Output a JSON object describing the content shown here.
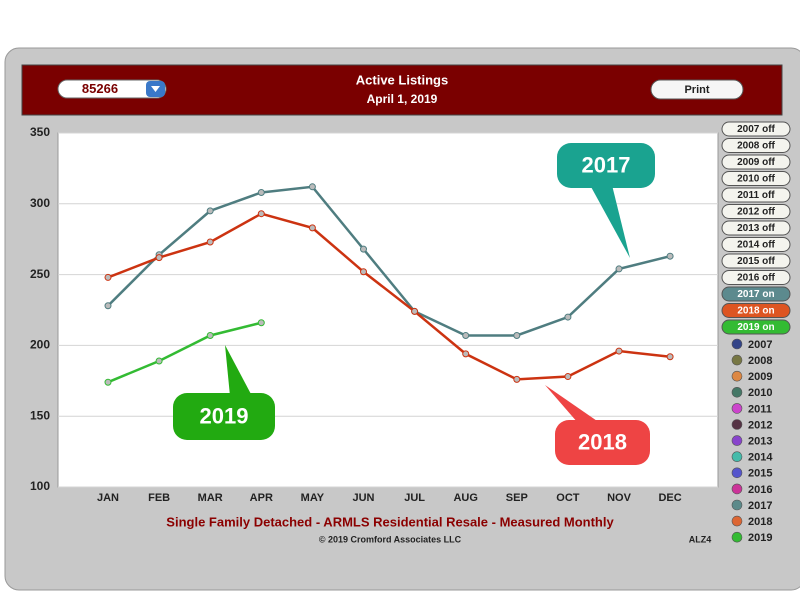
{
  "chart_data": {
    "type": "line",
    "title": "Active Listings",
    "subtitle": "April 1, 2019",
    "zip_select": "85266",
    "print_button": "Print",
    "footer": "Single Family Detached - ARMLS Residential Resale - Measured Monthly",
    "copyright": "© 2019 Cromford Associates LLC",
    "code": "ALZ4",
    "categories": [
      "JAN",
      "FEB",
      "MAR",
      "APR",
      "MAY",
      "JUN",
      "JUL",
      "AUG",
      "SEP",
      "OCT",
      "NOV",
      "DEC"
    ],
    "ylim": [
      100,
      350
    ],
    "yticks": [
      100,
      150,
      200,
      250,
      300,
      350
    ],
    "grid": true,
    "series": [
      {
        "name": "2017",
        "color": "#4f7d80",
        "callout_color": "#1aa390",
        "values": [
          228,
          264,
          295,
          308,
          312,
          268,
          224,
          207,
          207,
          220,
          254,
          263
        ]
      },
      {
        "name": "2018",
        "color": "#cc3311",
        "callout_color": "#ee4444",
        "values": [
          248,
          262,
          273,
          293,
          283,
          252,
          224,
          194,
          176,
          178,
          196,
          192
        ]
      },
      {
        "name": "2019",
        "color": "#33bb33",
        "callout_color": "#22aa11",
        "values": [
          174,
          189,
          207,
          216,
          null,
          null,
          null,
          null,
          null,
          null,
          null,
          null
        ]
      }
    ],
    "toggles": [
      {
        "label": "2007 off",
        "color": "#f4f4ee"
      },
      {
        "label": "2008 off",
        "color": "#f4f4ee"
      },
      {
        "label": "2009 off",
        "color": "#f4f4ee"
      },
      {
        "label": "2010 off",
        "color": "#f4f4ee"
      },
      {
        "label": "2011 off",
        "color": "#f4f4ee"
      },
      {
        "label": "2012 off",
        "color": "#f4f4ee"
      },
      {
        "label": "2013 off",
        "color": "#f4f4ee"
      },
      {
        "label": "2014 off",
        "color": "#f4f4ee"
      },
      {
        "label": "2015 off",
        "color": "#f4f4ee"
      },
      {
        "label": "2016 off",
        "color": "#f4f4ee"
      },
      {
        "label": "2017 on",
        "color": "#5c8a8e"
      },
      {
        "label": "2018 on",
        "color": "#dd5522"
      },
      {
        "label": "2019 on",
        "color": "#33bb33"
      }
    ],
    "legend": [
      {
        "name": "2007",
        "color": "#334488"
      },
      {
        "name": "2008",
        "color": "#777744"
      },
      {
        "name": "2009",
        "color": "#dd8844"
      },
      {
        "name": "2010",
        "color": "#447766"
      },
      {
        "name": "2011",
        "color": "#cc44cc"
      },
      {
        "name": "2012",
        "color": "#553344"
      },
      {
        "name": "2013",
        "color": "#8844cc"
      },
      {
        "name": "2014",
        "color": "#44bbaa"
      },
      {
        "name": "2015",
        "color": "#5555cc"
      },
      {
        "name": "2016",
        "color": "#cc3399"
      },
      {
        "name": "2017",
        "color": "#5c8a8a"
      },
      {
        "name": "2018",
        "color": "#dd6633"
      },
      {
        "name": "2019",
        "color": "#33bb33"
      }
    ]
  }
}
